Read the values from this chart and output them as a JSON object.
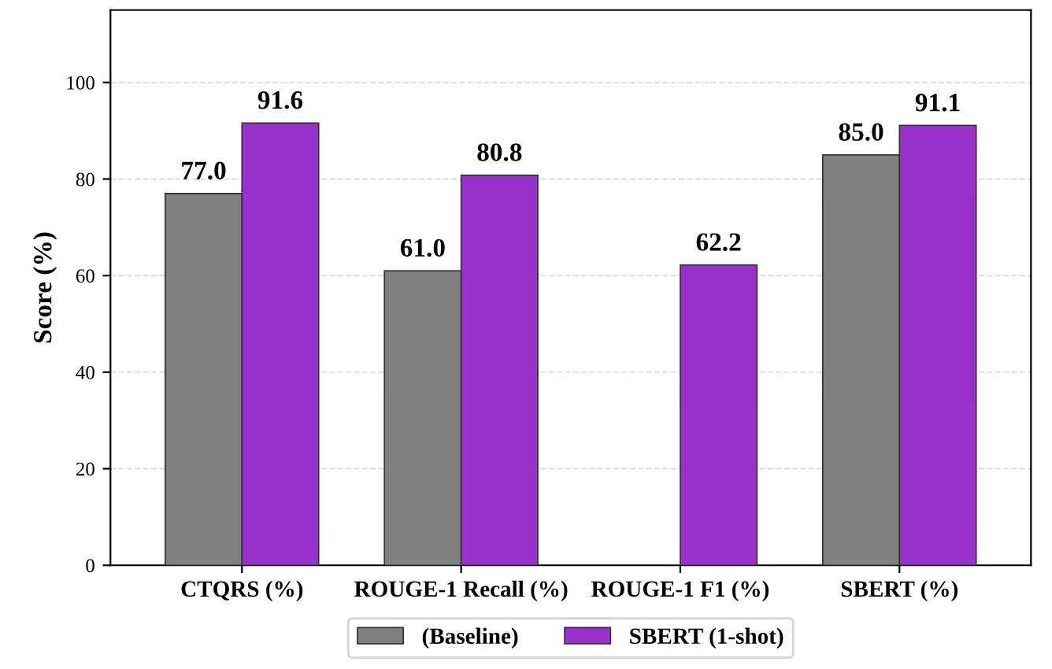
{
  "chart_data": {
    "type": "bar",
    "ylabel": "Score (%)",
    "categories": [
      "CTQRS (%)",
      "ROUGE-1 Recall (%)",
      "ROUGE-1 F1 (%)",
      "SBERT (%)"
    ],
    "series": [
      {
        "name": "(Baseline)",
        "color": "#808080",
        "values": [
          77.0,
          61.0,
          null,
          85.0
        ],
        "value_labels": [
          "77.0",
          "61.0",
          null,
          "85.0"
        ]
      },
      {
        "name": "SBERT (1-shot)",
        "color": "#9932cc",
        "values": [
          91.6,
          80.8,
          62.2,
          91.1
        ],
        "value_labels": [
          "91.6",
          "80.8",
          "62.2",
          "91.1"
        ]
      }
    ],
    "ylim": [
      0,
      115
    ],
    "yticks": [
      0,
      20,
      40,
      60,
      80,
      100
    ],
    "grid": "y",
    "legend": "bottom"
  }
}
